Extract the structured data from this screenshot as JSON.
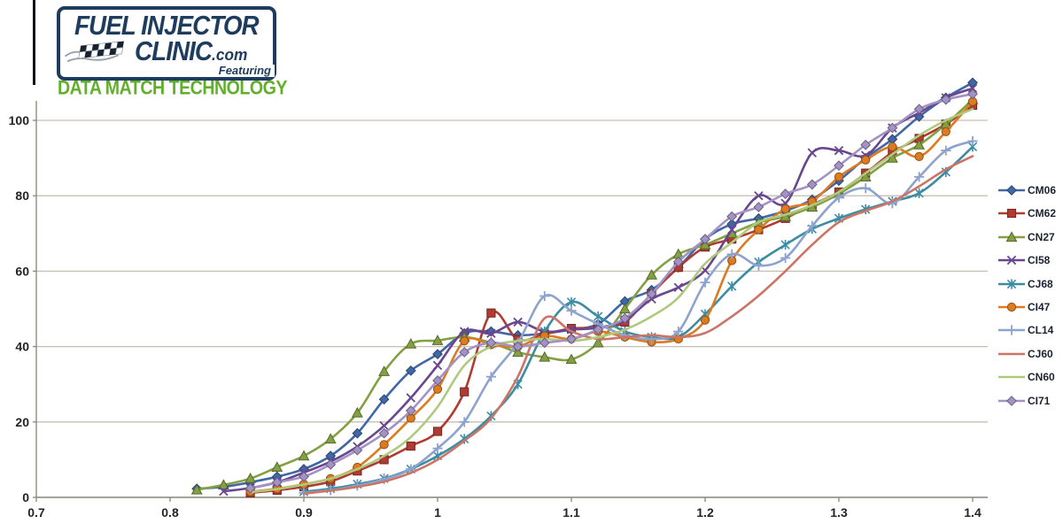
{
  "logo": {
    "title_top": "FUEL INJECTOR",
    "title_bottom": "CLINIC",
    "title_com": ".com",
    "featuring": "Featuring",
    "tagline": "DATA MATCH TECHNOLOGY"
  },
  "chart_data": {
    "type": "line",
    "title": "",
    "xlabel": "",
    "ylabel": "",
    "x_range": [
      0.7,
      1.4
    ],
    "y_range": [
      0,
      110
    ],
    "grid": true,
    "legend_position": "right",
    "x_ticks": [
      "0.7",
      "0.8",
      "0.9",
      "1",
      "1.1",
      "1.2",
      "1.3",
      "1.4"
    ],
    "x_tick_values": [
      0.7,
      0.8,
      0.9,
      1.0,
      1.1,
      1.2,
      1.3,
      1.4
    ],
    "y_ticks": [
      "0",
      "20",
      "40",
      "60",
      "80",
      "100"
    ],
    "y_tick_values": [
      0,
      20,
      40,
      60,
      80,
      100
    ],
    "x_start": 0.82,
    "x_step": 0.02,
    "series": [
      {
        "name": "CM06",
        "color": "#4068A6",
        "marker": "diamond",
        "values": [
          2.3,
          2.8,
          4,
          5.5,
          7.5,
          11,
          17,
          26,
          33.6,
          38,
          43.5,
          44,
          43,
          43.5,
          44.5,
          46,
          52,
          55,
          61,
          68.5,
          72.5,
          74,
          76,
          79,
          84,
          90,
          95,
          101,
          106,
          110
        ]
      },
      {
        "name": "CM62",
        "color": "#AF3B32",
        "marker": "square",
        "values": [
          null,
          null,
          1.2,
          1.9,
          2.8,
          4.2,
          7,
          10,
          13.6,
          17.5,
          28,
          48.9,
          41.9,
          43.3,
          44.8,
          45,
          46.5,
          54,
          61,
          66.4,
          68.5,
          71,
          74,
          77.6,
          81,
          86,
          91.5,
          95.2,
          99,
          104
        ]
      },
      {
        "name": "CN27",
        "color": "#84A042",
        "marker": "triangle",
        "values": [
          2,
          3.3,
          5,
          8,
          11,
          15.5,
          22.4,
          33.4,
          40.7,
          41.6,
          42.5,
          41,
          38.5,
          37.2,
          36.6,
          41,
          50,
          59,
          64.5,
          67,
          70,
          72.9,
          74.5,
          77,
          80.5,
          85,
          90,
          93.5,
          99,
          105.5
        ]
      },
      {
        "name": "CI58",
        "color": "#69478F",
        "marker": "x",
        "values": [
          null,
          1.6,
          2.5,
          4,
          6.6,
          9.5,
          13.5,
          19,
          26.4,
          35,
          44,
          43.5,
          46.5,
          44,
          44.5,
          45,
          47,
          52.6,
          55.7,
          60.2,
          71,
          80,
          78,
          91.4,
          92,
          90.7,
          98,
          102,
          106,
          108.5
        ]
      },
      {
        "name": "CJ68",
        "color": "#3C8DA3",
        "marker": "star",
        "values": [
          null,
          null,
          null,
          null,
          1.5,
          2.3,
          3.5,
          5,
          7.5,
          11,
          15.5,
          21.6,
          30,
          44,
          51.8,
          48,
          44,
          42.5,
          42.5,
          48.6,
          56,
          62.4,
          67,
          71.2,
          74,
          76.4,
          78.5,
          80.7,
          86.3,
          93
        ]
      },
      {
        "name": "CI47",
        "color": "#DD7B22",
        "marker": "circle",
        "values": [
          null,
          null,
          1.5,
          2.3,
          3.5,
          5,
          8,
          14,
          21,
          28.7,
          41.5,
          40.5,
          40,
          42.8,
          42,
          44,
          42.5,
          41.2,
          42,
          47,
          62.8,
          71,
          76.5,
          78.5,
          85,
          89.5,
          93,
          90.4,
          97,
          105
        ]
      },
      {
        "name": "CL14",
        "color": "#8DA3CD",
        "marker": "plus",
        "values": [
          null,
          null,
          null,
          null,
          1.2,
          1.9,
          3.1,
          4.8,
          7.5,
          13,
          20,
          32,
          41,
          53.4,
          49.5,
          46,
          43,
          42,
          44,
          57,
          64.5,
          61.5,
          63.5,
          72,
          79.5,
          82,
          78,
          85,
          92,
          94.5
        ]
      },
      {
        "name": "CJ60",
        "color": "#CD7466",
        "marker": "none",
        "values": [
          null,
          null,
          null,
          null,
          1,
          1.8,
          2.8,
          4.2,
          6.5,
          10,
          15,
          21,
          32,
          47.5,
          44,
          42,
          42.5,
          43,
          42.5,
          43.6,
          48,
          53.5,
          60,
          67,
          73,
          76,
          78.5,
          82.5,
          87,
          90.5
        ]
      },
      {
        "name": "CN60",
        "color": "#AFC97E",
        "marker": "none",
        "values": [
          null,
          null,
          1.4,
          2.2,
          3.4,
          5,
          7.5,
          11,
          16,
          24,
          35,
          40,
          41.5,
          42,
          41.5,
          42.5,
          44.5,
          48,
          53,
          62,
          67.6,
          73,
          75,
          77.5,
          81,
          86,
          91,
          96,
          100,
          103
        ]
      },
      {
        "name": "CI71",
        "color": "#A392C5",
        "marker": "diamond",
        "values": [
          null,
          null,
          2.4,
          4,
          5.5,
          8.7,
          12.5,
          17,
          23,
          31,
          38.5,
          41,
          40,
          41,
          42,
          44.5,
          47.5,
          54,
          62.5,
          68.5,
          74.5,
          77,
          80.5,
          83,
          88,
          93.5,
          98,
          103,
          105.5,
          107
        ]
      }
    ],
    "colors": {
      "grid": "#C6C0B2",
      "axis": "#8A8478",
      "tick_label": "#242424",
      "logo_navy": "#1d3c5e",
      "logo_green": "#61b02a"
    }
  }
}
